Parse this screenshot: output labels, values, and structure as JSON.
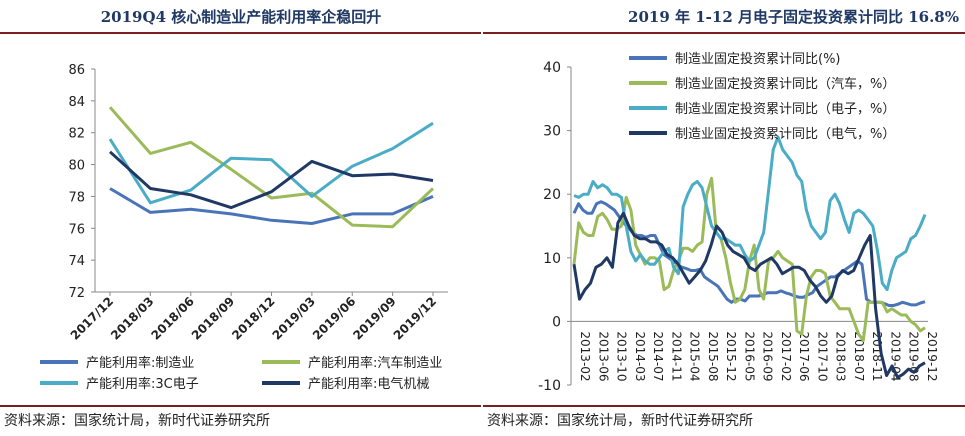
{
  "left": {
    "title": "2019Q4 核心制造业产能利用率企稳回升",
    "source": "资料来源：国家统计局，新时代证券研究所",
    "chart_data": {
      "type": "line",
      "categories": [
        "2017/12",
        "2018/03",
        "2018/06",
        "2018/09",
        "2018/12",
        "2019/03",
        "2019/06",
        "2019/09",
        "2019/12"
      ],
      "ylim": [
        72,
        86
      ],
      "yticks": [
        72,
        74,
        76,
        78,
        80,
        82,
        84,
        86
      ],
      "legend_position": "bottom",
      "grid": false,
      "series": [
        {
          "name": "产能利用率:制造业",
          "color": "#4a74b8",
          "values": [
            78.5,
            77.0,
            77.2,
            76.9,
            76.5,
            76.3,
            76.9,
            76.9,
            78.0
          ]
        },
        {
          "name": "产能利用率:汽车制造业",
          "color": "#9bbb59",
          "values": [
            83.6,
            80.7,
            81.4,
            79.7,
            77.9,
            78.2,
            76.2,
            76.1,
            78.5
          ]
        },
        {
          "name": "产能利用率:3C电子",
          "color": "#4bacc6",
          "values": [
            81.6,
            77.6,
            78.4,
            80.4,
            80.3,
            78.0,
            79.9,
            81.0,
            82.6
          ]
        },
        {
          "name": "产能利用率:电气机械",
          "color": "#1f3864",
          "values": [
            80.8,
            78.5,
            78.1,
            77.3,
            78.3,
            80.2,
            79.3,
            79.4,
            79.0
          ]
        }
      ]
    }
  },
  "right": {
    "title": "2019 年 1-12 月电子固定投资累计同比 16.8%",
    "source": "资料来源：国家统计局，新时代证券研究所",
    "chart_data": {
      "type": "line",
      "x_tick_labels": [
        "2013-02",
        "2013-06",
        "2013-10",
        "2014-03",
        "2014-07",
        "2014-11",
        "2015-04",
        "2015-08",
        "2015-12",
        "2016-05",
        "2016-09",
        "2017-02",
        "2017-06",
        "2017-10",
        "2018-03",
        "2018-07",
        "2018-11",
        "2019-04",
        "2019-08",
        "2019-12"
      ],
      "ylim": [
        -10,
        40
      ],
      "yticks": [
        -10,
        0,
        10,
        20,
        30,
        40
      ],
      "legend_position": "top-right",
      "grid": false,
      "series": [
        {
          "name": "制造业固定投资累计同比(%)",
          "color": "#4a74b8",
          "values": [
            17,
            18.5,
            17.5,
            17,
            17,
            18.5,
            18.8,
            18.5,
            18,
            17.5,
            16.5,
            15.5,
            14.8,
            14,
            13.5,
            13.5,
            13.2,
            13.5,
            13.5,
            12,
            10.5,
            10,
            9.5,
            9,
            8.5,
            8.3,
            8,
            8,
            8.2,
            7,
            6.5,
            6,
            5.5,
            4.5,
            3.5,
            3,
            3.5,
            3.5,
            3.2,
            4,
            4,
            4,
            4.2,
            4.5,
            4.5,
            4.5,
            4.8,
            4.5,
            4.3,
            4,
            3.8,
            3.8,
            4.2,
            4.5,
            5.5,
            6,
            6.5,
            7,
            7,
            7.5,
            8,
            8.5,
            9,
            9.5,
            9,
            3.5,
            3,
            3,
            3,
            2.8,
            2.5,
            2.5,
            2.7,
            3,
            2.8,
            2.6,
            2.6,
            2.9,
            3.1
          ]
        },
        {
          "name": "制造业固定投资累计同比（汽车，%）",
          "color": "#9bbb59",
          "values": [
            9,
            15.5,
            14,
            13.5,
            13.5,
            16.5,
            17,
            16,
            14.5,
            14.5,
            15,
            19.5,
            17.5,
            12,
            10.5,
            9,
            10,
            10,
            9.5,
            5,
            5.5,
            8,
            9.5,
            11.5,
            11.5,
            11,
            12,
            12.5,
            20,
            22.5,
            14,
            13,
            10,
            6,
            3,
            3.5,
            5,
            9.5,
            12,
            5,
            3.5,
            9.5,
            10,
            11,
            10,
            9.5,
            9,
            -1.5,
            -2,
            4,
            7,
            8,
            8,
            7.5,
            4,
            3,
            2,
            2,
            2,
            0,
            -2,
            -3,
            3,
            3,
            3,
            3,
            1.5,
            2,
            1.5,
            1,
            1,
            0,
            -0.5,
            -1.5,
            -1
          ]
        },
        {
          "name": "制造业固定投资累计同比（电子，%）",
          "color": "#4bacc6",
          "values": [
            19.8,
            19.5,
            20,
            20,
            22,
            21,
            21.5,
            21,
            20,
            20,
            19.5,
            15,
            11,
            9.5,
            10.5,
            9.5,
            9,
            9,
            10,
            11,
            11.5,
            8.5,
            7.5,
            18,
            20,
            21.5,
            22,
            21,
            18,
            15,
            14,
            13,
            13,
            12.5,
            12,
            12,
            10.5,
            9.5,
            10,
            12,
            14,
            20.5,
            27,
            29,
            27,
            26,
            25,
            23,
            22,
            17.5,
            15,
            14,
            13,
            14,
            19,
            20,
            18.5,
            16,
            14,
            17,
            17.5,
            17,
            16,
            15,
            11,
            6,
            5,
            8,
            10,
            10.5,
            11,
            13,
            13.5,
            15,
            16.8
          ]
        },
        {
          "name": "制造业固定投资累计同比（电气，%）",
          "color": "#1f3864",
          "values": [
            9,
            3.5,
            5,
            6,
            8.5,
            9,
            10,
            8.5,
            15.5,
            17,
            15,
            13.5,
            13,
            13,
            12.5,
            12.5,
            12,
            10.5,
            10,
            9,
            7.5,
            6,
            7,
            8,
            9.5,
            12,
            15,
            14,
            12,
            11,
            10.5,
            10,
            8.5,
            8,
            9,
            9.5,
            10,
            9,
            7.5,
            8,
            8.5,
            8.5,
            8,
            6.5,
            5.5,
            4,
            3,
            4,
            7,
            8,
            7.5,
            8,
            10,
            12,
            13.5,
            2,
            -5,
            -8.5,
            -7,
            -8.8,
            -8.3,
            -7.5,
            -8,
            -7,
            -6.5
          ]
        }
      ]
    }
  }
}
